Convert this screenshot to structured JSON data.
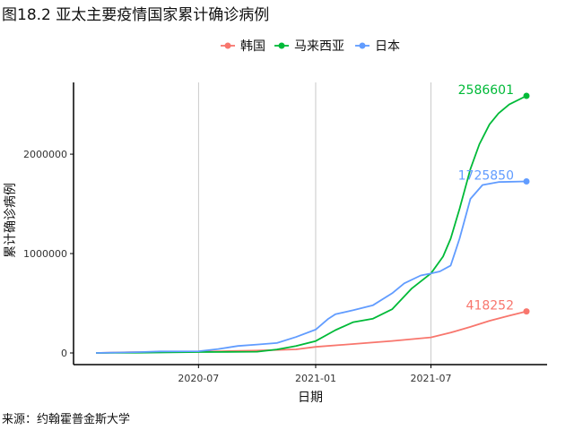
{
  "figure_title": "图18.2 亚太主要疫情国家累计确诊病例",
  "source_note": "来源：约翰霍普金斯大学",
  "colors": {
    "韩国": "#F8766D",
    "马来西亚": "#00BA38",
    "日本": "#619CFF",
    "grid": "#bdbdbd",
    "axis": "#000000"
  },
  "chart_data": {
    "type": "line",
    "title": "",
    "xlabel": "日期",
    "ylabel": "累计确诊病例",
    "x_axis": {
      "type": "date",
      "range": [
        "2020-01-22",
        "2021-11-28"
      ],
      "ticks": [
        "2020-07",
        "2021-01",
        "2021-07"
      ]
    },
    "y_axis": {
      "range": [
        0,
        2586601
      ],
      "ticks": [
        0,
        1000000,
        2000000
      ],
      "tick_labels": [
        "0",
        "1000000",
        "2000000"
      ]
    },
    "grid": {
      "vertical": true,
      "horizontal": false
    },
    "legend": {
      "position": "top",
      "entries": [
        "韩国",
        "马来西亚",
        "日本"
      ]
    },
    "series": [
      {
        "name": "韩国",
        "end_label": "418252",
        "points": [
          [
            "2020-01-22",
            0
          ],
          [
            "2020-03-15",
            8000
          ],
          [
            "2020-07-01",
            13000
          ],
          [
            "2020-10-01",
            24000
          ],
          [
            "2020-12-01",
            36000
          ],
          [
            "2021-01-01",
            61000
          ],
          [
            "2021-03-01",
            90000
          ],
          [
            "2021-05-01",
            121000
          ],
          [
            "2021-07-01",
            157000
          ],
          [
            "2021-08-01",
            205000
          ],
          [
            "2021-09-01",
            262000
          ],
          [
            "2021-10-01",
            324000
          ],
          [
            "2021-11-01",
            375000
          ],
          [
            "2021-11-28",
            418252
          ]
        ]
      },
      {
        "name": "马来西亚",
        "end_label": "2586601",
        "points": [
          [
            "2020-01-22",
            0
          ],
          [
            "2020-04-01",
            3000
          ],
          [
            "2020-07-01",
            8600
          ],
          [
            "2020-10-01",
            13000
          ],
          [
            "2020-11-01",
            35000
          ],
          [
            "2020-12-01",
            70000
          ],
          [
            "2021-01-01",
            120000
          ],
          [
            "2021-02-01",
            230000
          ],
          [
            "2021-03-01",
            310000
          ],
          [
            "2021-04-01",
            345000
          ],
          [
            "2021-05-01",
            440000
          ],
          [
            "2021-06-01",
            650000
          ],
          [
            "2021-07-01",
            800000
          ],
          [
            "2021-07-20",
            970000
          ],
          [
            "2021-08-01",
            1150000
          ],
          [
            "2021-08-15",
            1450000
          ],
          [
            "2021-09-01",
            1850000
          ],
          [
            "2021-09-15",
            2100000
          ],
          [
            "2021-10-01",
            2300000
          ],
          [
            "2021-10-15",
            2410000
          ],
          [
            "2021-11-01",
            2500000
          ],
          [
            "2021-11-28",
            2586601
          ]
        ]
      },
      {
        "name": "日本",
        "end_label": "1725850",
        "points": [
          [
            "2020-01-22",
            0
          ],
          [
            "2020-04-01",
            9000
          ],
          [
            "2020-05-01",
            15000
          ],
          [
            "2020-07-01",
            17000
          ],
          [
            "2020-08-01",
            40000
          ],
          [
            "2020-09-01",
            70000
          ],
          [
            "2020-10-01",
            85000
          ],
          [
            "2020-11-01",
            100000
          ],
          [
            "2020-12-01",
            160000
          ],
          [
            "2021-01-01",
            235000
          ],
          [
            "2021-01-20",
            340000
          ],
          [
            "2021-02-01",
            390000
          ],
          [
            "2021-03-01",
            430000
          ],
          [
            "2021-04-01",
            480000
          ],
          [
            "2021-05-01",
            600000
          ],
          [
            "2021-05-20",
            700000
          ],
          [
            "2021-06-15",
            780000
          ],
          [
            "2021-07-01",
            800000
          ],
          [
            "2021-07-15",
            820000
          ],
          [
            "2021-08-01",
            880000
          ],
          [
            "2021-08-15",
            1150000
          ],
          [
            "2021-09-01",
            1550000
          ],
          [
            "2021-09-20",
            1690000
          ],
          [
            "2021-10-15",
            1720000
          ],
          [
            "2021-11-28",
            1725850
          ]
        ]
      }
    ]
  }
}
